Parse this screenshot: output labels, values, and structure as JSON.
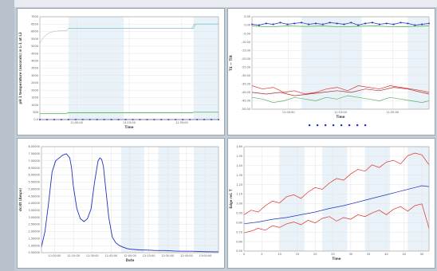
{
  "colors": {
    "page_bg": "#c3cdd6",
    "blue": "#2030c0",
    "teal": "#5fbcc0",
    "green": "#36a836",
    "red": "#e0302a",
    "dark_red": "#a83030",
    "light_green": "#5fae5f",
    "pale": "#c8c8c8",
    "shade": "#e8f2f8"
  },
  "chart_data": [
    {
      "type": "line",
      "xlabel": "Time",
      "ylabel": "pH 1 temperature (seconds) in L-1 at L3",
      "y_ticks": [
        "7000",
        "6500",
        "6000",
        "5500",
        "5000",
        "4500",
        "4000",
        "3500",
        "3000",
        "2500",
        "2000",
        "1500",
        "1000",
        "500",
        "0.0"
      ],
      "x_ticks": [
        "11:00:00",
        "11:15:00",
        "11:30:00"
      ],
      "ylim": [
        0,
        7000
      ],
      "xlim": [
        0,
        100
      ],
      "shaded_bands": [
        [
          16,
          47
        ],
        [
          86,
          100
        ]
      ],
      "series": [
        {
          "color": "#c8c8c8",
          "x": [
            0,
            1,
            2,
            3,
            5,
            8,
            12,
            15,
            16,
            85,
            86,
            87,
            100
          ],
          "y": [
            5200,
            5400,
            5600,
            5700,
            5900,
            6000,
            6050,
            6050,
            6200,
            6200,
            6450,
            6500,
            6500
          ]
        },
        {
          "color": "#5fbcc0",
          "x": [
            16,
            86,
            87,
            100
          ],
          "y": [
            6200,
            6200,
            6500,
            6500
          ]
        },
        {
          "color": "#36a836",
          "x": [
            0,
            15,
            16,
            85,
            86,
            100
          ],
          "y": [
            420,
            420,
            460,
            460,
            500,
            500
          ]
        },
        {
          "color": "#2030c0",
          "x": [
            0,
            4,
            8,
            12,
            16,
            20,
            24,
            28,
            32,
            36,
            40,
            44,
            48,
            52,
            56,
            60,
            64,
            68,
            72,
            76,
            80,
            84,
            88,
            92,
            96,
            100
          ],
          "y": [
            0,
            0,
            0,
            0,
            0,
            0,
            0,
            0,
            0,
            0,
            0,
            0,
            0,
            0,
            0,
            0,
            0,
            0,
            0,
            0,
            0,
            0,
            0,
            0,
            0,
            0
          ],
          "markers": true
        }
      ]
    },
    {
      "type": "line",
      "xlabel": "Time",
      "ylabel": "T4 — Tilt",
      "y_ticks": [
        "5.00",
        "0.00",
        "-5.00",
        "-10.00",
        "-15.00",
        "-20.00",
        "-25.00",
        "-30.00",
        "-35.00",
        "-40.00",
        "-45.00",
        "-50.00"
      ],
      "x_ticks": [
        "11:00:00",
        "11:15:00",
        "11:30:00"
      ],
      "ylim": [
        -50,
        5
      ],
      "xlim": [
        0,
        100
      ],
      "shaded_bands": [
        [
          28,
          62
        ],
        [
          88,
          100
        ]
      ],
      "legend_items": [
        "1",
        "2",
        "3",
        "4",
        "5",
        "6",
        "7",
        "8"
      ],
      "series": [
        {
          "color": "#2030c0",
          "markers": true,
          "x": [
            0,
            4,
            8,
            12,
            16,
            20,
            24,
            28,
            32,
            36,
            40,
            44,
            48,
            52,
            56,
            60,
            64,
            68,
            72,
            76,
            80,
            84,
            88,
            92,
            96,
            100
          ],
          "y": [
            0.5,
            0,
            1,
            0.5,
            1.5,
            0.5,
            1,
            1.5,
            0.5,
            1,
            0.5,
            1.5,
            1,
            0.5,
            1.5,
            0,
            1,
            1.5,
            0.5,
            1,
            0.5,
            1.5,
            1,
            0,
            0.5,
            1
          ]
        },
        {
          "color": "#36a836",
          "x": [
            0,
            10,
            20,
            30,
            40,
            50,
            60,
            70,
            80,
            90,
            100
          ],
          "y": [
            -0.5,
            -1,
            -0.5,
            -0.8,
            -0.5,
            -1,
            -0.7,
            -0.5,
            -1,
            -0.8,
            -0.5
          ]
        },
        {
          "color": "#e0302a",
          "x": [
            0,
            6,
            12,
            18,
            24,
            30,
            36,
            42,
            48,
            54,
            60,
            66,
            72,
            78,
            84,
            90,
            96,
            100
          ],
          "y": [
            -36,
            -38,
            -37,
            -40,
            -39,
            -41,
            -40,
            -38,
            -37,
            -39,
            -36,
            -37,
            -38,
            -36,
            -37,
            -38,
            -39,
            -40
          ]
        },
        {
          "color": "#a83030",
          "x": [
            0,
            8,
            16,
            24,
            32,
            40,
            48,
            56,
            64,
            72,
            80,
            88,
            96,
            100
          ],
          "y": [
            -40,
            -41,
            -40,
            -42,
            -41,
            -40,
            -39,
            -40,
            -38,
            -39,
            -37,
            -38,
            -40,
            -41
          ]
        },
        {
          "color": "#5fae5f",
          "x": [
            0,
            6,
            12,
            18,
            24,
            30,
            36,
            42,
            48,
            54,
            60,
            66,
            72,
            78,
            84,
            90,
            96,
            100
          ],
          "y": [
            -43,
            -44,
            -46,
            -45,
            -43,
            -44,
            -45,
            -43,
            -44,
            -42,
            -43,
            -44,
            -45,
            -43,
            -44,
            -45,
            -46,
            -45
          ]
        }
      ]
    },
    {
      "type": "line",
      "xlabel": "Date",
      "ylabel": "dc/dt (Amps)",
      "y_ticks": [
        "8.00000",
        "7.50000",
        "7.00000",
        "6.50000",
        "6.00000",
        "5.50000",
        "5.00000",
        "4.50000",
        "4.00000",
        "3.50000",
        "3.00000",
        "2.50000",
        "2.00000",
        "1.50000",
        "1.00000",
        "0.50000"
      ],
      "x_ticks": [
        "11:00:00",
        "11:15:00",
        "11:30:00",
        "11:45:00",
        "12:00:00",
        "12:15:00",
        "12:30:00",
        "12:45:00",
        "13:00:00"
      ],
      "ylim": [
        0.5,
        8
      ],
      "xlim": [
        0,
        100
      ],
      "shaded_bands": [
        [
          45,
          58
        ],
        [
          66,
          78
        ],
        [
          86,
          100
        ]
      ],
      "series": [
        {
          "color": "#2030c0",
          "x": [
            0,
            2,
            4,
            6,
            8,
            10,
            12,
            14,
            16,
            17,
            18,
            20,
            22,
            24,
            26,
            28,
            30,
            32,
            33,
            34,
            35,
            36,
            38,
            40,
            42,
            44,
            46,
            48,
            50,
            55,
            60,
            65,
            70,
            75,
            80,
            85,
            90,
            95,
            100
          ],
          "y": [
            0.9,
            2.0,
            4.0,
            6.2,
            7.0,
            7.2,
            7.4,
            7.5,
            7.2,
            6.5,
            5.2,
            3.6,
            2.9,
            2.7,
            2.9,
            3.6,
            5.5,
            7.0,
            7.2,
            7.1,
            6.6,
            5.4,
            3.0,
            1.6,
            1.2,
            1.0,
            0.9,
            0.8,
            0.75,
            0.7,
            0.68,
            0.65,
            0.65,
            0.62,
            0.6,
            0.6,
            0.58,
            0.57,
            0.56
          ]
        }
      ]
    },
    {
      "type": "line",
      "xlabel": "Time",
      "ylabel": "Edge rel. T",
      "y_ticks": [
        "1.60",
        "1.50",
        "1.40",
        "1.30",
        "1.20",
        "1.10",
        "1.00",
        "0.90",
        "0.80",
        "0.70",
        "0.60",
        "0.50"
      ],
      "x_ticks": [
        "0",
        "5",
        "10",
        "15",
        "20",
        "25",
        "30",
        "35",
        "40",
        "45",
        "50"
      ],
      "ylim": [
        0.5,
        1.65
      ],
      "xlim": [
        0,
        52
      ],
      "shaded_bands": [
        [
          10,
          17
        ],
        [
          22,
          29
        ],
        [
          34,
          41
        ],
        [
          46,
          52
        ]
      ],
      "series": [
        {
          "color": "#2030c0",
          "x": [
            0,
            4,
            8,
            12,
            16,
            20,
            24,
            28,
            32,
            36,
            40,
            44,
            48,
            50,
            52
          ],
          "y": [
            0.8,
            0.82,
            0.85,
            0.87,
            0.9,
            0.93,
            0.97,
            1.0,
            1.04,
            1.08,
            1.12,
            1.16,
            1.2,
            1.22,
            1.21
          ]
        },
        {
          "color": "#e0302a",
          "x": [
            0,
            2,
            4,
            6,
            8,
            10,
            12,
            14,
            16,
            18,
            20,
            22,
            24,
            26,
            28,
            30,
            32,
            34,
            36,
            38,
            40,
            42,
            44,
            46,
            48,
            50,
            52
          ],
          "y": [
            0.9,
            0.95,
            0.93,
            1.0,
            1.05,
            1.03,
            1.1,
            1.12,
            1.08,
            1.15,
            1.2,
            1.18,
            1.25,
            1.3,
            1.28,
            1.35,
            1.4,
            1.38,
            1.45,
            1.42,
            1.48,
            1.5,
            1.46,
            1.55,
            1.58,
            1.56,
            1.45
          ]
        },
        {
          "color": "#e0302a",
          "x": [
            0,
            2,
            4,
            6,
            8,
            10,
            12,
            14,
            16,
            18,
            20,
            22,
            24,
            26,
            28,
            30,
            32,
            34,
            36,
            38,
            40,
            42,
            44,
            46,
            48,
            50,
            52
          ],
          "y": [
            0.7,
            0.72,
            0.75,
            0.73,
            0.78,
            0.76,
            0.8,
            0.82,
            0.79,
            0.84,
            0.81,
            0.86,
            0.88,
            0.83,
            0.87,
            0.85,
            0.9,
            0.88,
            0.92,
            0.95,
            0.9,
            0.96,
            0.99,
            0.94,
            1.0,
            1.02,
            0.75
          ]
        }
      ]
    }
  ]
}
